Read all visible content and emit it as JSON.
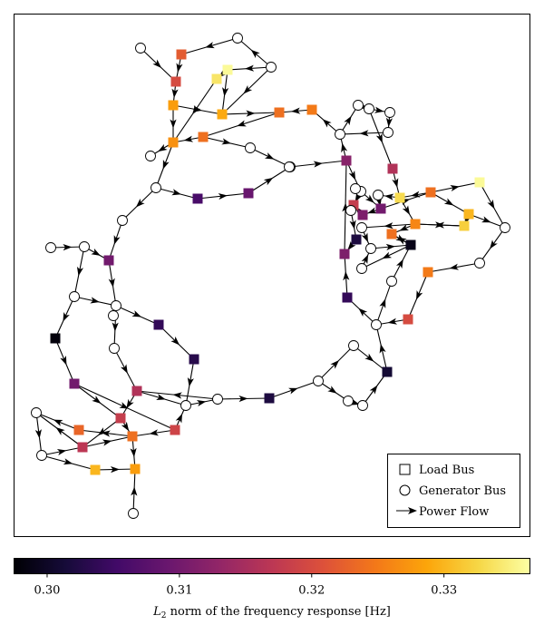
{
  "legend": {
    "load_label": "Load Bus",
    "gen_label": "Generator Bus",
    "flow_label": "Power Flow"
  },
  "colorbar": {
    "label_prefix": "L",
    "label_sub": "2",
    "label_rest": " norm of the frequency response [Hz]",
    "vmin": 0.2975,
    "vmax": 0.3365,
    "ticks": [
      {
        "value": 0.3,
        "label": "0.30"
      },
      {
        "value": 0.31,
        "label": "0.31"
      },
      {
        "value": 0.32,
        "label": "0.32"
      },
      {
        "value": 0.33,
        "label": "0.33"
      }
    ],
    "colormap": "inferno"
  },
  "nodes": [
    {
      "id": "g1",
      "type": "gen"
    },
    {
      "id": "g2",
      "type": "gen"
    },
    {
      "id": "g3",
      "type": "gen"
    },
    {
      "id": "l1",
      "type": "load",
      "value": 0.336
    },
    {
      "id": "l2",
      "type": "load",
      "value": 0.334
    },
    {
      "id": "l3",
      "type": "load",
      "value": 0.328
    },
    {
      "id": "l4",
      "type": "load",
      "value": 0.329
    },
    {
      "id": "l5",
      "type": "load",
      "value": 0.327
    },
    {
      "id": "l6",
      "type": "load",
      "value": 0.324
    },
    {
      "id": "l7",
      "type": "load",
      "value": 0.322
    },
    {
      "id": "l8",
      "type": "load",
      "value": 0.32
    },
    {
      "id": "l9",
      "type": "load",
      "value": 0.324
    },
    {
      "id": "l10",
      "type": "load",
      "value": 0.325
    },
    {
      "id": "g4",
      "type": "gen"
    },
    {
      "id": "g5",
      "type": "gen"
    },
    {
      "id": "g6",
      "type": "gen"
    },
    {
      "id": "g7",
      "type": "gen"
    },
    {
      "id": "l11",
      "type": "load",
      "value": 0.306
    },
    {
      "id": "l12",
      "type": "load",
      "value": 0.309
    },
    {
      "id": "g8",
      "type": "gen"
    },
    {
      "id": "l13",
      "type": "load",
      "value": 0.31
    },
    {
      "id": "g9",
      "type": "gen"
    },
    {
      "id": "g10",
      "type": "gen"
    },
    {
      "id": "g11",
      "type": "gen"
    },
    {
      "id": "g12",
      "type": "gen"
    },
    {
      "id": "l14",
      "type": "load",
      "value": 0.298
    },
    {
      "id": "g13",
      "type": "gen"
    },
    {
      "id": "g14",
      "type": "gen"
    },
    {
      "id": "g15",
      "type": "gen"
    },
    {
      "id": "l15",
      "type": "load",
      "value": 0.304
    },
    {
      "id": "l16",
      "type": "load",
      "value": 0.303
    },
    {
      "id": "l17",
      "type": "load",
      "value": 0.31
    },
    {
      "id": "l18",
      "type": "load",
      "value": 0.316
    },
    {
      "id": "l19",
      "type": "load",
      "value": 0.318
    },
    {
      "id": "l20",
      "type": "load",
      "value": 0.319
    },
    {
      "id": "g16",
      "type": "gen"
    },
    {
      "id": "g17",
      "type": "gen"
    },
    {
      "id": "l21",
      "type": "load",
      "value": 0.324
    },
    {
      "id": "l22",
      "type": "load",
      "value": 0.323
    },
    {
      "id": "l23",
      "type": "load",
      "value": 0.317
    },
    {
      "id": "l24",
      "type": "load",
      "value": 0.33
    },
    {
      "id": "l25",
      "type": "load",
      "value": 0.328
    },
    {
      "id": "g18",
      "type": "gen"
    },
    {
      "id": "g19",
      "type": "gen"
    },
    {
      "id": "l26",
      "type": "load",
      "value": 0.302
    },
    {
      "id": "g20",
      "type": "gen"
    },
    {
      "id": "g21",
      "type": "gen"
    },
    {
      "id": "g22",
      "type": "gen"
    },
    {
      "id": "g23",
      "type": "gen"
    },
    {
      "id": "l27",
      "type": "load",
      "value": 0.301
    },
    {
      "id": "g24",
      "type": "gen"
    },
    {
      "id": "g25",
      "type": "gen"
    },
    {
      "id": "g26",
      "type": "gen"
    },
    {
      "id": "g27",
      "type": "gen"
    },
    {
      "id": "l28",
      "type": "load",
      "value": 0.304
    },
    {
      "id": "l29",
      "type": "load",
      "value": 0.311
    },
    {
      "id": "l30",
      "type": "load",
      "value": 0.312
    },
    {
      "id": "g28",
      "type": "gen"
    },
    {
      "id": "g29",
      "type": "gen"
    },
    {
      "id": "l31",
      "type": "load",
      "value": 0.316
    },
    {
      "id": "l32",
      "type": "load",
      "value": 0.333
    },
    {
      "id": "l33",
      "type": "load",
      "value": 0.324
    },
    {
      "id": "l34",
      "type": "load",
      "value": 0.326
    },
    {
      "id": "l35",
      "type": "load",
      "value": 0.324
    },
    {
      "id": "l36",
      "type": "load",
      "value": 0.336
    },
    {
      "id": "l37",
      "type": "load",
      "value": 0.33
    },
    {
      "id": "l38",
      "type": "load",
      "value": 0.332
    },
    {
      "id": "l39",
      "type": "load",
      "value": 0.325
    },
    {
      "id": "l40",
      "type": "load",
      "value": 0.32
    },
    {
      "id": "g30",
      "type": "gen"
    },
    {
      "id": "g31",
      "type": "gen"
    },
    {
      "id": "g32",
      "type": "gen"
    },
    {
      "id": "g33",
      "type": "gen"
    },
    {
      "id": "g34",
      "type": "gen"
    },
    {
      "id": "g35",
      "type": "gen"
    },
    {
      "id": "l41",
      "type": "load",
      "value": 0.318
    },
    {
      "id": "l42",
      "type": "load",
      "value": 0.31
    },
    {
      "id": "l43",
      "type": "load",
      "value": 0.311
    },
    {
      "id": "g36",
      "type": "gen"
    },
    {
      "id": "g37",
      "type": "gen"
    },
    {
      "id": "l44",
      "type": "load",
      "value": 0.302
    },
    {
      "id": "g38",
      "type": "gen"
    },
    {
      "id": "g39",
      "type": "gen"
    },
    {
      "id": "g40",
      "type": "gen"
    },
    {
      "id": "l45",
      "type": "load",
      "value": 0.299
    }
  ],
  "edges": [
    [
      "g1",
      "l2"
    ],
    [
      "g3",
      "g2"
    ],
    [
      "g2",
      "l1"
    ],
    [
      "g2",
      "g4"
    ],
    [
      "l1",
      "l2"
    ],
    [
      "l2",
      "l3"
    ],
    [
      "g4",
      "l4"
    ],
    [
      "l4",
      "l5"
    ],
    [
      "l4",
      "l9"
    ],
    [
      "l9",
      "l8"
    ],
    [
      "l8",
      "l9"
    ],
    [
      "l9",
      "l10"
    ],
    [
      "l8",
      "l7"
    ],
    [
      "l7",
      "l9"
    ],
    [
      "l3",
      "l6"
    ],
    [
      "l6",
      "l10"
    ],
    [
      "l3",
      "l5"
    ],
    [
      "l5",
      "l10"
    ],
    [
      "l10",
      "g6"
    ],
    [
      "g6",
      "g5"
    ],
    [
      "l6",
      "g7"
    ],
    [
      "l6",
      "g5"
    ],
    [
      "g5",
      "g8"
    ],
    [
      "g7",
      "g8"
    ],
    [
      "g8",
      "l12"
    ],
    [
      "l12",
      "l11"
    ],
    [
      "l11",
      "g8"
    ],
    [
      "g8",
      "g9"
    ],
    [
      "g9",
      "g10"
    ],
    [
      "g11",
      "g10"
    ],
    [
      "g10",
      "l14"
    ],
    [
      "l14",
      "g12"
    ],
    [
      "g12",
      "g13"
    ],
    [
      "g13",
      "l15"
    ],
    [
      "l15",
      "l16"
    ],
    [
      "l16",
      "g14"
    ],
    [
      "g12",
      "g14"
    ],
    [
      "g14",
      "l17"
    ],
    [
      "g13",
      "l26"
    ],
    [
      "l17",
      "g15"
    ],
    [
      "l17",
      "l19"
    ],
    [
      "l15",
      "l18"
    ],
    [
      "l18",
      "l20"
    ],
    [
      "l18",
      "l21"
    ],
    [
      "l20",
      "l22"
    ],
    [
      "l22",
      "l23"
    ],
    [
      "l23",
      "l22"
    ],
    [
      "l21",
      "g18"
    ],
    [
      "l23",
      "g18"
    ],
    [
      "g18",
      "g19"
    ],
    [
      "g19",
      "l24"
    ],
    [
      "l24",
      "l25"
    ],
    [
      "l25",
      "l22"
    ],
    [
      "l19",
      "g16"
    ],
    [
      "l16",
      "g16"
    ],
    [
      "g16",
      "g17"
    ],
    [
      "g17",
      "l27"
    ],
    [
      "l27",
      "g20"
    ],
    [
      "g20",
      "g21"
    ],
    [
      "g21",
      "g22"
    ],
    [
      "g22",
      "g23"
    ],
    [
      "g23",
      "l28"
    ],
    [
      "l28",
      "g24"
    ],
    [
      "g24",
      "g25"
    ],
    [
      "g25",
      "g26"
    ],
    [
      "g26",
      "l29"
    ],
    [
      "l29",
      "l30"
    ],
    [
      "l30",
      "g27"
    ],
    [
      "g27",
      "g26"
    ],
    [
      "g25",
      "l31"
    ],
    [
      "l31",
      "g28"
    ],
    [
      "g28",
      "l30"
    ],
    [
      "g27",
      "g29"
    ],
    [
      "g29",
      "l40"
    ],
    [
      "l40",
      "g30"
    ],
    [
      "g30",
      "l34"
    ],
    [
      "l34",
      "l33"
    ],
    [
      "l33",
      "l32"
    ],
    [
      "l32",
      "g31"
    ],
    [
      "g31",
      "l35"
    ],
    [
      "l35",
      "l36"
    ],
    [
      "l36",
      "g32"
    ],
    [
      "g32",
      "l37"
    ],
    [
      "l37",
      "l38"
    ],
    [
      "l38",
      "g33"
    ],
    [
      "g33",
      "l39"
    ],
    [
      "l39",
      "l41"
    ],
    [
      "l41",
      "g34"
    ],
    [
      "g34",
      "l42"
    ],
    [
      "l42",
      "l43"
    ],
    [
      "l43",
      "g35"
    ],
    [
      "g35",
      "g36"
    ],
    [
      "g36",
      "g37"
    ],
    [
      "g37",
      "l44"
    ],
    [
      "l44",
      "g38"
    ],
    [
      "g38",
      "g39"
    ],
    [
      "g39",
      "g40"
    ],
    [
      "g40",
      "l45"
    ],
    [
      "l45",
      "g36"
    ],
    [
      "g35",
      "g24"
    ],
    [
      "l39",
      "g31"
    ]
  ]
}
